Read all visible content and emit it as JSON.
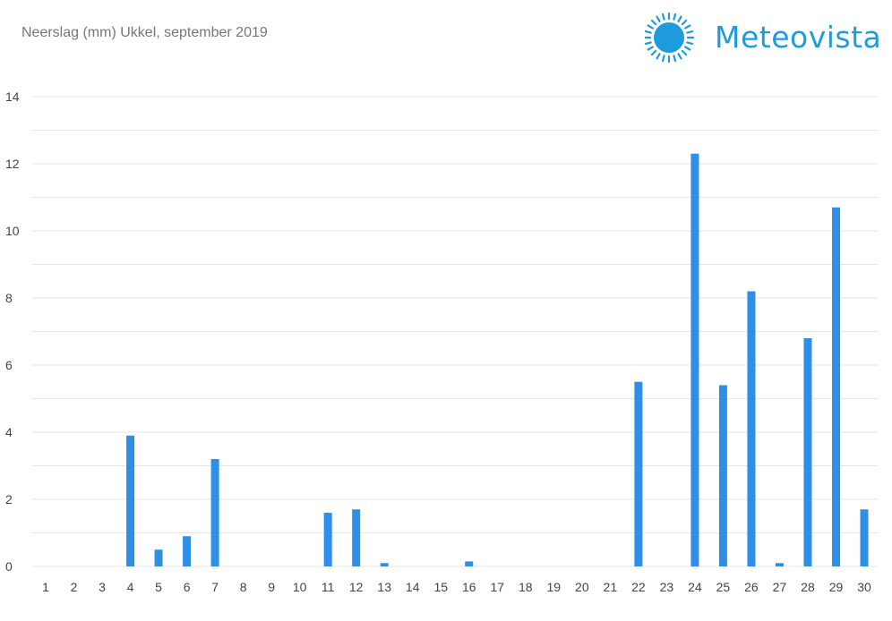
{
  "header": {
    "brand": "Meteovista"
  },
  "colors": {
    "bar": "#2f8fe6",
    "brand": "#1e9bdc",
    "grid": "#e6e6e6"
  },
  "logo_icon": "sun-icon",
  "chart_data": {
    "type": "bar",
    "title": "Neerslag (mm) Ukkel, september 2019",
    "xlabel": "",
    "ylabel": "",
    "ylim": [
      0,
      14
    ],
    "yticks": [
      0,
      2,
      4,
      6,
      8,
      10,
      12,
      14
    ],
    "grid": true,
    "categories": [
      "1",
      "2",
      "3",
      "4",
      "5",
      "6",
      "7",
      "8",
      "9",
      "10",
      "11",
      "12",
      "13",
      "14",
      "15",
      "16",
      "17",
      "18",
      "19",
      "20",
      "21",
      "22",
      "23",
      "24",
      "25",
      "26",
      "27",
      "28",
      "29",
      "30"
    ],
    "values": [
      0,
      0,
      0,
      3.9,
      0.5,
      0.9,
      3.2,
      0,
      0,
      0,
      1.6,
      1.7,
      0.1,
      0,
      0,
      0.15,
      0,
      0,
      0,
      0,
      0,
      5.5,
      0,
      12.3,
      5.4,
      8.2,
      0.1,
      6.8,
      10.7,
      1.7
    ]
  }
}
